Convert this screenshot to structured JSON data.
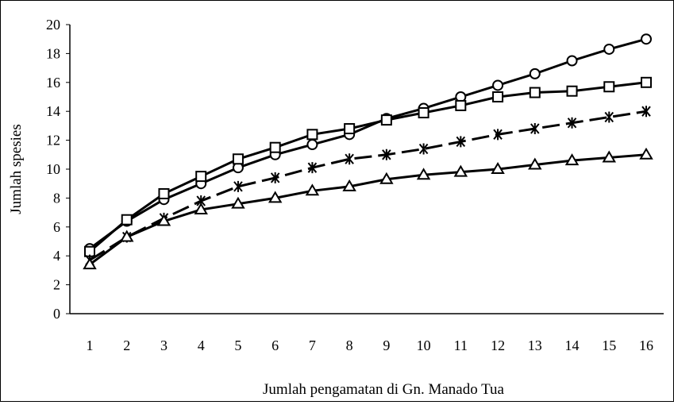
{
  "chart_data": {
    "type": "line",
    "title": "",
    "xlabel": "Jumlah pengamatan di Gn. Manado Tua",
    "ylabel": "Jumlah spesies",
    "x": [
      1,
      2,
      3,
      4,
      5,
      6,
      7,
      8,
      9,
      10,
      11,
      12,
      13,
      14,
      15,
      16
    ],
    "ylim": [
      0,
      20
    ],
    "yticks": [
      0,
      2,
      4,
      6,
      8,
      10,
      12,
      14,
      16,
      18,
      20
    ],
    "grid": false,
    "legend": "none",
    "series": [
      {
        "name": "circle",
        "marker": "circle",
        "dashed": false,
        "values": [
          4.5,
          6.4,
          7.9,
          9.0,
          10.1,
          11.0,
          11.7,
          12.4,
          13.5,
          14.2,
          15.0,
          15.8,
          16.6,
          17.5,
          18.3,
          19.0
        ]
      },
      {
        "name": "square",
        "marker": "square",
        "dashed": false,
        "values": [
          4.3,
          6.5,
          8.3,
          9.5,
          10.7,
          11.5,
          12.4,
          12.8,
          13.4,
          13.9,
          14.4,
          15.0,
          15.3,
          15.4,
          15.7,
          16.0
        ]
      },
      {
        "name": "star",
        "marker": "star",
        "dashed": true,
        "values": [
          3.7,
          5.3,
          6.6,
          7.8,
          8.8,
          9.4,
          10.1,
          10.7,
          11.0,
          11.4,
          11.9,
          12.4,
          12.8,
          13.2,
          13.6,
          14.0
        ]
      },
      {
        "name": "triangle",
        "marker": "triangle",
        "dashed": false,
        "values": [
          3.4,
          5.3,
          6.4,
          7.2,
          7.6,
          8.0,
          8.5,
          8.8,
          9.3,
          9.6,
          9.8,
          10.0,
          10.3,
          10.6,
          10.8,
          11.0
        ]
      }
    ]
  }
}
